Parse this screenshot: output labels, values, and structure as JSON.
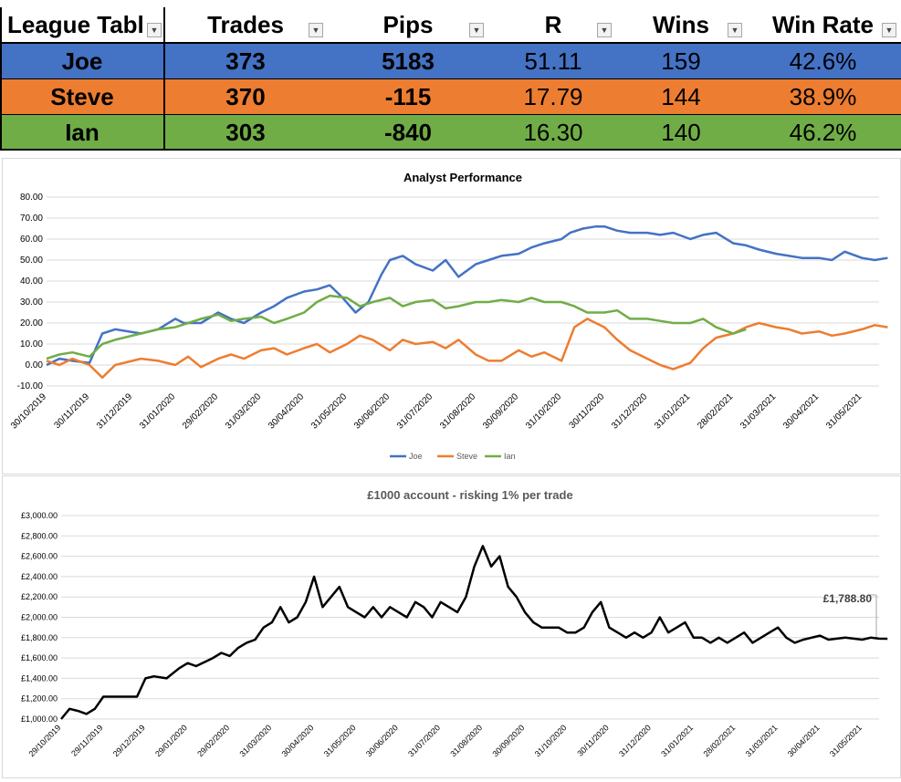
{
  "league_table": {
    "headers": [
      "League Tabl",
      "Trades",
      "Pips",
      "R",
      "Wins",
      "Win Rate"
    ],
    "rows": [
      {
        "name": "Joe",
        "trades": "373",
        "pips": "5183",
        "r": "51.11",
        "wins": "159",
        "win_rate": "42.6%",
        "color": "#4472C4"
      },
      {
        "name": "Steve",
        "trades": "370",
        "pips": "-115",
        "r": "17.79",
        "wins": "144",
        "win_rate": "38.9%",
        "color": "#ED7D31"
      },
      {
        "name": "Ian",
        "trades": "303",
        "pips": "-840",
        "r": "16.30",
        "wins": "140",
        "win_rate": "46.2%",
        "color": "#70AD47"
      }
    ],
    "filter_icon": "dropdown-arrow-icon",
    "sort_icon": "sort-descending-icon"
  },
  "chart_data": [
    {
      "type": "line",
      "title": "Analyst Performance",
      "xlabel": "",
      "ylabel": "",
      "ylim": [
        -10,
        80
      ],
      "yticks": [
        "80.00",
        "70.00",
        "60.00",
        "50.00",
        "40.00",
        "30.00",
        "20.00",
        "10.00",
        "0.00",
        "-10.00"
      ],
      "xticks": [
        "30/10/2019",
        "30/11/2019",
        "31/12/2019",
        "31/01/2020",
        "29/02/2020",
        "31/03/2020",
        "30/04/2020",
        "31/05/2020",
        "30/06/2020",
        "31/07/2020",
        "31/08/2020",
        "30/09/2020",
        "31/10/2020",
        "30/11/2020",
        "31/12/2020",
        "31/01/2021",
        "28/02/2021",
        "31/03/2021",
        "30/04/2021",
        "31/05/2021"
      ],
      "legend_position": "bottom",
      "grid": true,
      "series": [
        {
          "name": "Joe",
          "color": "#4472C4",
          "x": [
            0,
            0.3,
            0.6,
            1.0,
            1.3,
            1.6,
            2.2,
            2.6,
            3.0,
            3.2,
            3.6,
            4.0,
            4.3,
            4.6,
            5.0,
            5.3,
            5.6,
            6.0,
            6.3,
            6.6,
            6.9,
            7.2,
            7.5,
            7.8,
            8.0,
            8.3,
            8.6,
            9.0,
            9.3,
            9.6,
            10.0,
            10.3,
            10.6,
            11.0,
            11.3,
            11.6,
            12.0,
            12.2,
            12.5,
            12.8,
            13.0,
            13.3,
            13.6,
            14.0,
            14.3,
            14.6,
            15.0,
            15.3,
            15.6,
            16.0,
            16.3,
            16.6,
            17.0,
            17.3,
            17.6,
            18.0,
            18.3,
            18.6,
            19.0,
            19.3,
            19.6
          ],
          "y": [
            0,
            3,
            2,
            1,
            15,
            17,
            15,
            17,
            22,
            20,
            20,
            25,
            22,
            20,
            25,
            28,
            32,
            35,
            36,
            38,
            32,
            25,
            30,
            43,
            50,
            52,
            48,
            45,
            50,
            42,
            48,
            50,
            52,
            53,
            56,
            58,
            60,
            63,
            65,
            66,
            66,
            64,
            63,
            63,
            62,
            63,
            60,
            62,
            63,
            58,
            57,
            55,
            53,
            52,
            51,
            51,
            50,
            54,
            51,
            50,
            51
          ]
        },
        {
          "name": "Steve",
          "color": "#ED7D31",
          "x": [
            0,
            0.3,
            0.6,
            1.0,
            1.3,
            1.6,
            2.2,
            2.6,
            3.0,
            3.3,
            3.6,
            4.0,
            4.3,
            4.6,
            5.0,
            5.3,
            5.6,
            6.0,
            6.3,
            6.6,
            7.0,
            7.3,
            7.6,
            8.0,
            8.3,
            8.6,
            9.0,
            9.3,
            9.6,
            10.0,
            10.3,
            10.6,
            11.0,
            11.3,
            11.6,
            12.0,
            12.3,
            12.6,
            13.0,
            13.3,
            13.6,
            14.0,
            14.3,
            14.6,
            15.0,
            15.3,
            15.6,
            16.0,
            16.3,
            16.6,
            17.0,
            17.3,
            17.6,
            18.0,
            18.3,
            18.6,
            19.0,
            19.3,
            19.6
          ],
          "y": [
            2,
            0,
            3,
            0,
            -6,
            0,
            3,
            2,
            0,
            4,
            -1,
            3,
            5,
            3,
            7,
            8,
            5,
            8,
            10,
            6,
            10,
            14,
            12,
            7,
            12,
            10,
            11,
            8,
            12,
            5,
            2,
            2,
            7,
            4,
            6,
            2,
            18,
            22,
            18,
            12,
            7,
            3,
            0,
            -2,
            1,
            8,
            13,
            15,
            18,
            20,
            18,
            17,
            15,
            16,
            14,
            15,
            17,
            19,
            18
          ]
        },
        {
          "name": "Ian",
          "color": "#70AD47",
          "x": [
            0,
            0.3,
            0.6,
            1.0,
            1.3,
            1.6,
            2.2,
            2.6,
            3.0,
            3.3,
            3.6,
            4.0,
            4.3,
            4.6,
            5.0,
            5.3,
            5.6,
            6.0,
            6.3,
            6.6,
            7.0,
            7.3,
            7.6,
            8.0,
            8.3,
            8.6,
            9.0,
            9.3,
            9.6,
            10.0,
            10.3,
            10.6,
            11.0,
            11.3,
            11.6,
            12.0,
            12.3,
            12.6,
            13.0,
            13.3,
            13.6,
            14.0,
            14.3,
            14.6,
            15.0,
            15.3,
            15.6,
            16.0,
            16.3
          ],
          "y": [
            3,
            5,
            6,
            4,
            10,
            12,
            15,
            17,
            18,
            20,
            22,
            24,
            21,
            22,
            23,
            20,
            22,
            25,
            30,
            33,
            32,
            28,
            30,
            32,
            28,
            30,
            31,
            27,
            28,
            30,
            30,
            31,
            30,
            32,
            30,
            30,
            28,
            25,
            25,
            26,
            22,
            22,
            21,
            20,
            20,
            22,
            18,
            15,
            17
          ]
        }
      ]
    },
    {
      "type": "line",
      "title": "£1000 account - risking 1% per trade",
      "xlabel": "",
      "ylabel": "",
      "ylim": [
        1000,
        3000
      ],
      "yticks": [
        "£3,000.00",
        "£2,800.00",
        "£2,600.00",
        "£2,400.00",
        "£2,200.00",
        "£2,000.00",
        "£1,800.00",
        "£1,600.00",
        "£1,400.00",
        "£1,200.00",
        "£1,000.00"
      ],
      "xticks": [
        "29/10/2019",
        "29/11/2019",
        "29/12/2019",
        "29/01/2020",
        "29/02/2020",
        "31/03/2020",
        "30/04/2020",
        "31/05/2020",
        "30/06/2020",
        "31/07/2020",
        "31/08/2020",
        "30/09/2020",
        "31/10/2020",
        "30/11/2020",
        "31/12/2020",
        "31/01/2021",
        "28/02/2021",
        "31/03/2021",
        "30/04/2021",
        "31/05/2021"
      ],
      "data_label": "£1,788.80",
      "grid": true,
      "series": [
        {
          "color": "#000000",
          "x": [
            0,
            0.2,
            0.4,
            0.6,
            0.8,
            1.0,
            1.3,
            1.6,
            1.8,
            2.0,
            2.2,
            2.5,
            2.8,
            3.0,
            3.2,
            3.4,
            3.6,
            3.8,
            4.0,
            4.2,
            4.4,
            4.6,
            4.8,
            5.0,
            5.2,
            5.4,
            5.6,
            5.8,
            6.0,
            6.2,
            6.4,
            6.6,
            6.8,
            7.0,
            7.2,
            7.4,
            7.6,
            7.8,
            8.0,
            8.2,
            8.4,
            8.6,
            8.8,
            9.0,
            9.2,
            9.4,
            9.6,
            9.8,
            10.0,
            10.2,
            10.4,
            10.6,
            10.8,
            11.0,
            11.2,
            11.4,
            11.6,
            11.8,
            12.0,
            12.2,
            12.4,
            12.6,
            12.8,
            13.0,
            13.2,
            13.4,
            13.6,
            13.8,
            14.0,
            14.2,
            14.4,
            14.6,
            14.8,
            15.0,
            15.2,
            15.4,
            15.6,
            15.8,
            16.0,
            16.2,
            16.4,
            16.6,
            16.8,
            17.0,
            17.2,
            17.4,
            17.6,
            17.8,
            18.0,
            18.2,
            18.4,
            18.6,
            18.8,
            19.0,
            19.2,
            19.4,
            19.6
          ],
          "y": [
            1000,
            1100,
            1080,
            1050,
            1100,
            1220,
            1220,
            1220,
            1220,
            1400,
            1420,
            1400,
            1500,
            1550,
            1520,
            1560,
            1600,
            1650,
            1620,
            1700,
            1750,
            1780,
            1900,
            1950,
            2100,
            1950,
            2000,
            2150,
            2400,
            2100,
            2200,
            2300,
            2100,
            2050,
            2000,
            2100,
            2000,
            2100,
            2050,
            2000,
            2150,
            2100,
            2000,
            2150,
            2100,
            2050,
            2200,
            2500,
            2700,
            2500,
            2600,
            2300,
            2200,
            2050,
            1950,
            1900,
            1900,
            1900,
            1850,
            1850,
            1900,
            2050,
            2150,
            1900,
            1850,
            1800,
            1850,
            1800,
            1850,
            2000,
            1850,
            1900,
            1950,
            1800,
            1800,
            1750,
            1800,
            1750,
            1800,
            1850,
            1750,
            1800,
            1850,
            1900,
            1800,
            1750,
            1780,
            1800,
            1820,
            1780,
            1790,
            1800,
            1790,
            1780,
            1800,
            1790,
            1788.8
          ]
        }
      ]
    }
  ]
}
